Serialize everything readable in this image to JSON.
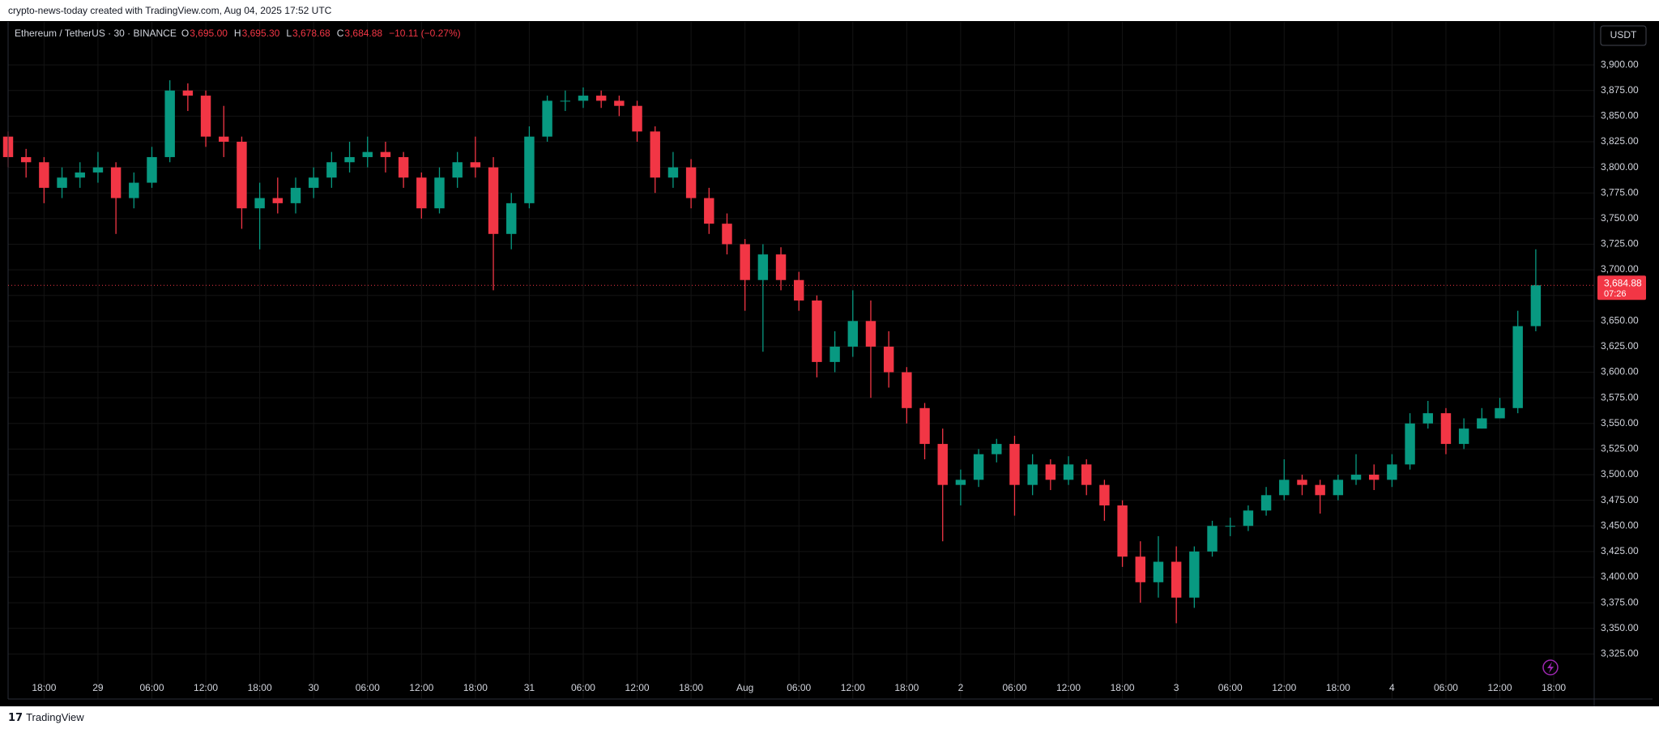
{
  "attribution": "crypto-news-today created with TradingView.com, Aug 04, 2025 17:52 UTC",
  "chart_data": {
    "type": "candlestick",
    "symbol": "Ethereum / TetherUS · 30 · BINANCE",
    "ohlc_legend": [
      {
        "key": "O",
        "value": "3,695.00"
      },
      {
        "key": "H",
        "value": "3,695.30"
      },
      {
        "key": "L",
        "value": "3,678.68"
      },
      {
        "key": "C",
        "value": "3,684.88"
      }
    ],
    "change": "−10.11 (−0.27%)",
    "currency": "USDT",
    "x": [
      -4,
      -2,
      0,
      2,
      4,
      6,
      8,
      10,
      12,
      14,
      16,
      18,
      20,
      22,
      24,
      26,
      28,
      30,
      32,
      34,
      36,
      38,
      40,
      42,
      44,
      46,
      48,
      50,
      52,
      54,
      56,
      58,
      60,
      62,
      64,
      66,
      68,
      70,
      72,
      74,
      76,
      78,
      80,
      82,
      84,
      86,
      88,
      90,
      92,
      94,
      96,
      98,
      100,
      102,
      104,
      106,
      108,
      110,
      112,
      114,
      116,
      118,
      120,
      122,
      124,
      126,
      128,
      130,
      132,
      134,
      136,
      138,
      140,
      142,
      144,
      146,
      148,
      150,
      152,
      154,
      156,
      158,
      160,
      162,
      164,
      166
    ],
    "open": [
      3830,
      3810,
      3805,
      3780,
      3790,
      3795,
      3800,
      3770,
      3785,
      3810,
      3875,
      3870,
      3830,
      3825,
      3760,
      3770,
      3765,
      3780,
      3790,
      3805,
      3810,
      3815,
      3810,
      3790,
      3760,
      3790,
      3805,
      3800,
      3735,
      3765,
      3830,
      3865,
      3865,
      3870,
      3865,
      3860,
      3835,
      3790,
      3800,
      3770,
      3745,
      3725,
      3690,
      3715,
      3690,
      3670,
      3610,
      3625,
      3650,
      3625,
      3600,
      3565,
      3530,
      3490,
      3495,
      3520,
      3530,
      3490,
      3510,
      3495,
      3510,
      3490,
      3470,
      3420,
      3395,
      3415,
      3380,
      3425,
      3450,
      3450,
      3465,
      3480,
      3495,
      3490,
      3480,
      3495,
      3500,
      3495,
      3510,
      3550,
      3560,
      3530,
      3545,
      3555,
      3565,
      3645
    ],
    "high": [
      3835,
      3818,
      3810,
      3800,
      3805,
      3815,
      3805,
      3795,
      3820,
      3885,
      3882,
      3875,
      3860,
      3830,
      3785,
      3790,
      3790,
      3800,
      3815,
      3825,
      3830,
      3825,
      3815,
      3795,
      3800,
      3815,
      3830,
      3810,
      3775,
      3840,
      3870,
      3875,
      3878,
      3875,
      3870,
      3865,
      3840,
      3815,
      3808,
      3780,
      3755,
      3730,
      3725,
      3722,
      3698,
      3675,
      3640,
      3680,
      3670,
      3640,
      3605,
      3570,
      3545,
      3505,
      3525,
      3535,
      3538,
      3520,
      3515,
      3518,
      3515,
      3495,
      3475,
      3435,
      3440,
      3430,
      3430,
      3455,
      3458,
      3470,
      3488,
      3515,
      3500,
      3495,
      3500,
      3520,
      3510,
      3520,
      3560,
      3572,
      3565,
      3555,
      3565,
      3575,
      3660,
      3720
    ],
    "low": [
      3800,
      3790,
      3765,
      3770,
      3780,
      3785,
      3735,
      3760,
      3780,
      3805,
      3855,
      3820,
      3810,
      3740,
      3720,
      3755,
      3755,
      3770,
      3780,
      3795,
      3800,
      3795,
      3780,
      3750,
      3755,
      3780,
      3790,
      3680,
      3720,
      3760,
      3825,
      3855,
      3858,
      3858,
      3850,
      3825,
      3775,
      3780,
      3760,
      3735,
      3715,
      3660,
      3620,
      3680,
      3660,
      3595,
      3600,
      3615,
      3575,
      3585,
      3550,
      3515,
      3435,
      3470,
      3488,
      3512,
      3460,
      3480,
      3485,
      3490,
      3480,
      3455,
      3410,
      3375,
      3380,
      3355,
      3370,
      3420,
      3440,
      3445,
      3460,
      3475,
      3480,
      3462,
      3475,
      3490,
      3485,
      3488,
      3505,
      3545,
      3520,
      3525,
      3545,
      3555,
      3560,
      3640
    ],
    "close": [
      3810,
      3805,
      3780,
      3790,
      3795,
      3800,
      3770,
      3785,
      3810,
      3875,
      3870,
      3830,
      3825,
      3760,
      3770,
      3765,
      3780,
      3790,
      3805,
      3810,
      3815,
      3810,
      3790,
      3760,
      3790,
      3805,
      3800,
      3735,
      3765,
      3830,
      3865,
      3865,
      3870,
      3865,
      3860,
      3835,
      3790,
      3800,
      3770,
      3745,
      3725,
      3690,
      3715,
      3690,
      3670,
      3610,
      3625,
      3650,
      3625,
      3600,
      3565,
      3530,
      3490,
      3495,
      3520,
      3530,
      3490,
      3510,
      3495,
      3510,
      3490,
      3470,
      3420,
      3395,
      3415,
      3380,
      3425,
      3450,
      3450,
      3465,
      3480,
      3495,
      3490,
      3480,
      3495,
      3500,
      3495,
      3510,
      3550,
      3560,
      3530,
      3545,
      3555,
      3565,
      3645,
      3684.88
    ],
    "up_color": "#089981",
    "down_color": "#f23645",
    "xlim": [
      -4,
      172.5
    ],
    "xticks": [
      {
        "value": 0,
        "label": "18:00"
      },
      {
        "value": 6,
        "label": "29"
      },
      {
        "value": 12,
        "label": "06:00"
      },
      {
        "value": 18,
        "label": "12:00"
      },
      {
        "value": 24,
        "label": "18:00"
      },
      {
        "value": 30,
        "label": "30"
      },
      {
        "value": 36,
        "label": "06:00"
      },
      {
        "value": 42,
        "label": "12:00"
      },
      {
        "value": 48,
        "label": "18:00"
      },
      {
        "value": 54,
        "label": "31"
      },
      {
        "value": 60,
        "label": "06:00"
      },
      {
        "value": 66,
        "label": "12:00"
      },
      {
        "value": 72,
        "label": "18:00"
      },
      {
        "value": 78,
        "label": "Aug"
      },
      {
        "value": 84,
        "label": "06:00"
      },
      {
        "value": 90,
        "label": "12:00"
      },
      {
        "value": 96,
        "label": "18:00"
      },
      {
        "value": 102,
        "label": "2"
      },
      {
        "value": 108,
        "label": "06:00"
      },
      {
        "value": 114,
        "label": "12:00"
      },
      {
        "value": 120,
        "label": "18:00"
      },
      {
        "value": 126,
        "label": "3"
      },
      {
        "value": 132,
        "label": "06:00"
      },
      {
        "value": 138,
        "label": "12:00"
      },
      {
        "value": 144,
        "label": "18:00"
      },
      {
        "value": 150,
        "label": "4"
      },
      {
        "value": 156,
        "label": "06:00"
      },
      {
        "value": 162,
        "label": "12:00"
      },
      {
        "value": 168,
        "label": "18:00"
      }
    ],
    "ylim": [
      3281,
      3942
    ],
    "yticks": [
      {
        "value": 3325,
        "label": "3,325.00"
      },
      {
        "value": 3350,
        "label": "3,350.00"
      },
      {
        "value": 3375,
        "label": "3,375.00"
      },
      {
        "value": 3400,
        "label": "3,400.00"
      },
      {
        "value": 3425,
        "label": "3,425.00"
      },
      {
        "value": 3450,
        "label": "3,450.00"
      },
      {
        "value": 3475,
        "label": "3,475.00"
      },
      {
        "value": 3500,
        "label": "3,500.00"
      },
      {
        "value": 3525,
        "label": "3,525.00"
      },
      {
        "value": 3550,
        "label": "3,550.00"
      },
      {
        "value": 3575,
        "label": "3,575.00"
      },
      {
        "value": 3600,
        "label": "3,600.00"
      },
      {
        "value": 3625,
        "label": "3,625.00"
      },
      {
        "value": 3650,
        "label": "3,650.00"
      },
      {
        "value": 3675,
        "label": "3,675.00"
      },
      {
        "value": 3700,
        "label": "3,700.00"
      },
      {
        "value": 3725,
        "label": "3,725.00"
      },
      {
        "value": 3750,
        "label": "3,750.00"
      },
      {
        "value": 3775,
        "label": "3,775.00"
      },
      {
        "value": 3800,
        "label": "3,800.00"
      },
      {
        "value": 3825,
        "label": "3,825.00"
      },
      {
        "value": 3850,
        "label": "3,850.00"
      },
      {
        "value": 3875,
        "label": "3,875.00"
      },
      {
        "value": 3900,
        "label": "3,900.00"
      }
    ],
    "last_price": {
      "value": 3684.88,
      "label": "3,684.88"
    },
    "countdown": "07:26",
    "grid": true
  },
  "footer": "TradingView"
}
